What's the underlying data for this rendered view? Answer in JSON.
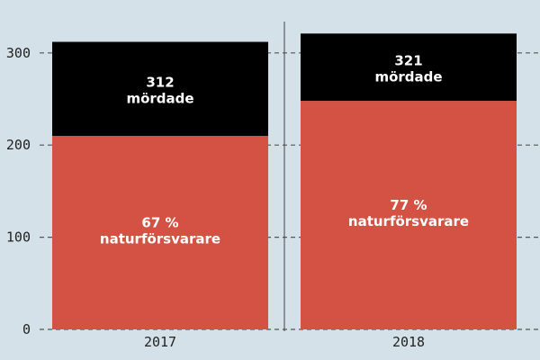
{
  "chart_data": {
    "type": "bar",
    "stacked": true,
    "categories": [
      "2017",
      "2018"
    ],
    "series": [
      {
        "values": [
          210,
          248
        ],
        "color": "#d35243",
        "labels": [
          "67 %",
          "77 %"
        ],
        "sublabel": "naturförsvarare"
      },
      {
        "values": [
          102,
          73
        ],
        "color": "#000000"
      }
    ],
    "totals": [
      312,
      321
    ],
    "total_suffix": "mördade",
    "ylim": [
      0,
      320
    ],
    "yticks": [
      0,
      100,
      200,
      300
    ],
    "grid": true
  }
}
